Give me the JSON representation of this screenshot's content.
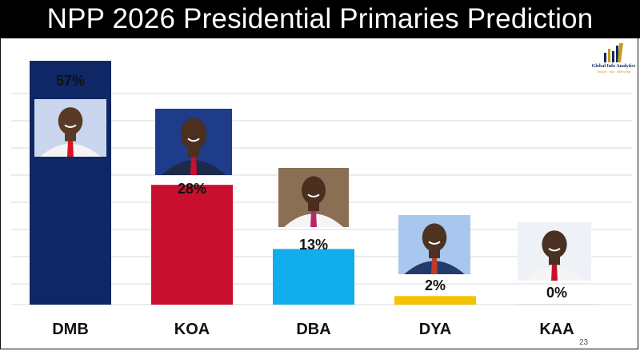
{
  "title": "NPP 2026 Presidential Primaries Prediction",
  "logo": {
    "name": "Global Info Analytics",
    "tagline": "Analyze · Info · Marketing"
  },
  "page_number": "23",
  "colors": {
    "title_bar": "#000000",
    "DMB": "#0f2765",
    "KOA": "#c8102e",
    "DBA": "#12adec",
    "DYA": "#f5c200",
    "KAA": "#e0e0e0",
    "grid": "#d9d9d9"
  },
  "chart_data": {
    "type": "bar",
    "title": "NPP 2026 Presidential Primaries Prediction",
    "categories": [
      "DMB",
      "KOA",
      "DBA",
      "DYA",
      "KAA"
    ],
    "values": [
      57,
      28,
      13,
      2,
      0
    ],
    "value_labels": [
      "57%",
      "28%",
      "13%",
      "2%",
      "0%"
    ],
    "ylim": [
      0,
      60
    ],
    "grid": true,
    "legend": "none",
    "xlabel": "",
    "ylabel": ""
  }
}
